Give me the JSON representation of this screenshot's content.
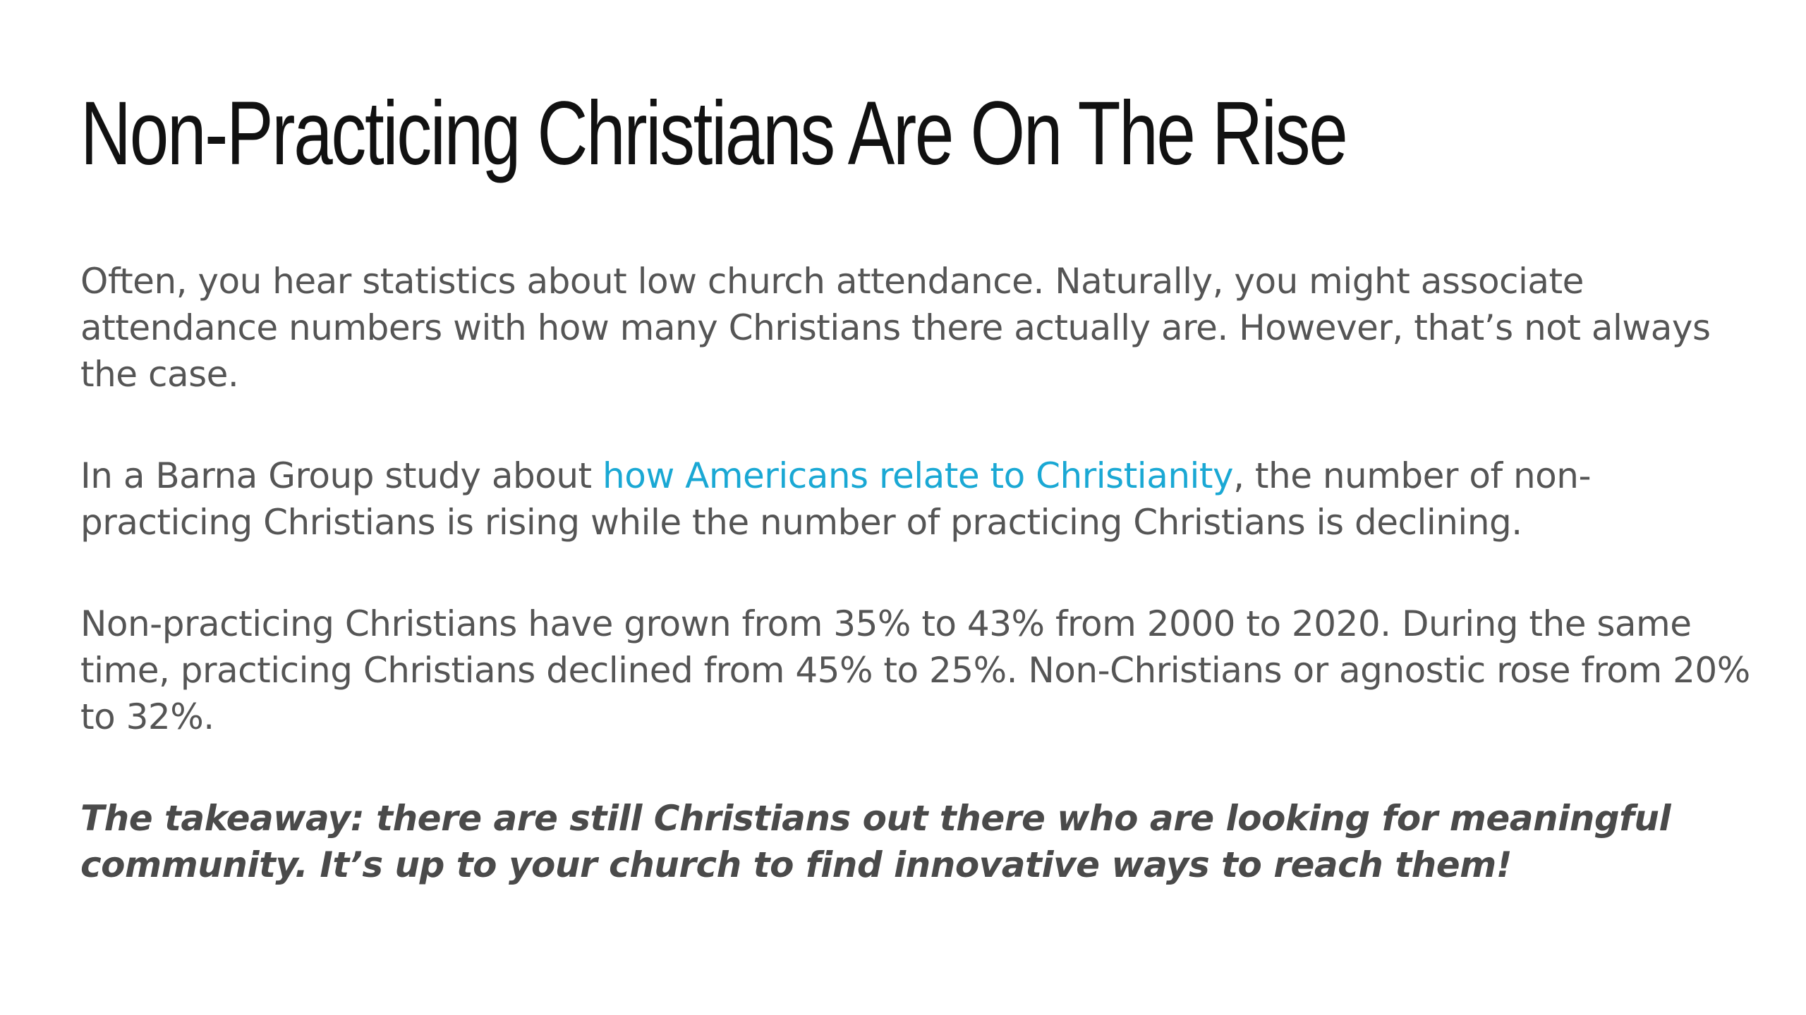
{
  "title": "Non-Practicing Christians Are On The Rise",
  "paragraphs": {
    "p1": "Often, you hear statistics about low church attendance. Naturally, you might associate attendance numbers with how many Christians there actually are. However, that’s not always the case.",
    "p2_before": "In a Barna Group study about ",
    "p2_link": "how Americans relate to Christianity",
    "p2_after": ", the number of non-practicing Christians is rising while the number of practicing Christians is declining.",
    "p3": "Non-practicing Christians have grown from 35% to 43% from 2000 to 2020. During the same time, practicing Christians declined from 45% to 25%. Non-Christians or agnostic rose from 20% to 32%.",
    "p4": "The takeaway: there are still Christians out there who are looking for meaningful community. It’s up to your church to find innovative ways to reach them!"
  },
  "colors": {
    "title": "#111111",
    "body_text": "#555555",
    "link": "#1aa8d4"
  }
}
